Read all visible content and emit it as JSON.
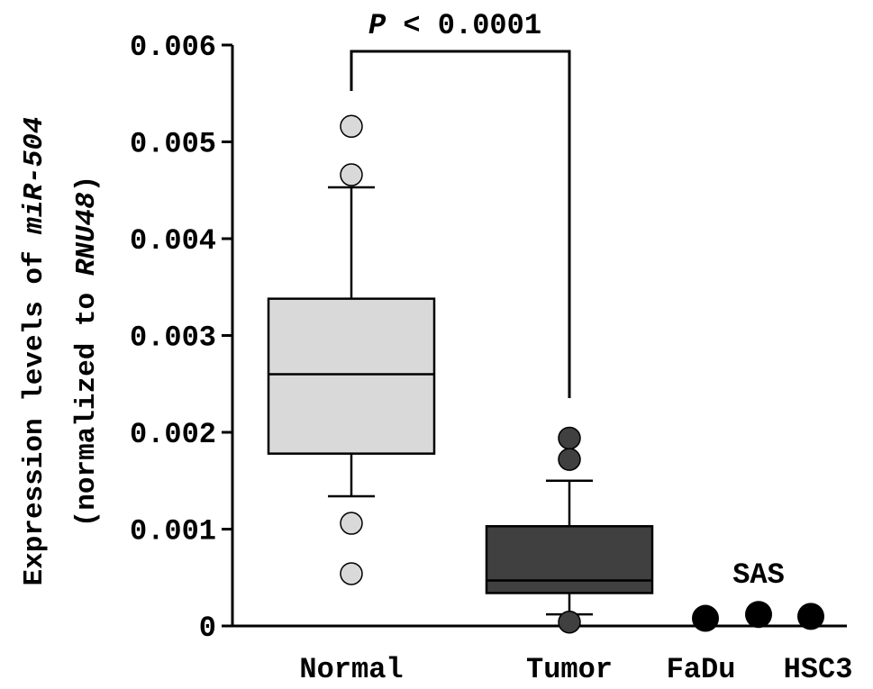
{
  "chart_data": {
    "type": "box",
    "ylabel_line1_prefix": "Expression levels of ",
    "ylabel_line1_gene": "miR-504",
    "ylabel_line2_prefix": "(normalized to ",
    "ylabel_line2_gene": "RNU48",
    "ylabel_line2_suffix": ")",
    "ylim": [
      0,
      0.006
    ],
    "yticks": [
      {
        "value": 0,
        "label": "0"
      },
      {
        "value": 0.001,
        "label": "0.001"
      },
      {
        "value": 0.002,
        "label": "0.002"
      },
      {
        "value": 0.003,
        "label": "0.003"
      },
      {
        "value": 0.004,
        "label": "0.004"
      },
      {
        "value": 0.005,
        "label": "0.005"
      },
      {
        "value": 0.006,
        "label": "0.006"
      }
    ],
    "groups": [
      {
        "name": "Normal",
        "color": "#d9d9d9",
        "whisker_low": 0.00134,
        "q1": 0.00178,
        "median": 0.0026,
        "q3": 0.00338,
        "whisker_high": 0.00453,
        "outliers": [
          0.00516,
          0.00466,
          0.00106,
          0.00054
        ]
      },
      {
        "name": "Tumor",
        "color": "#404040",
        "whisker_low": 0.00012,
        "q1": 0.00034,
        "median": 0.00047,
        "q3": 0.00103,
        "whisker_high": 0.0015,
        "outliers": [
          0.00194,
          0.00172,
          4e-05
        ]
      }
    ],
    "cell_lines": {
      "label": "SAS",
      "color": "#000000",
      "points": [
        {
          "name": "FaDu",
          "value": 6e-05
        },
        {
          "name": "SAS",
          "value": 0.0001
        },
        {
          "name": "HSC3",
          "value": 8e-05
        }
      ]
    },
    "annotation": {
      "p_symbol": "P",
      "text": " < 0.0001"
    }
  }
}
